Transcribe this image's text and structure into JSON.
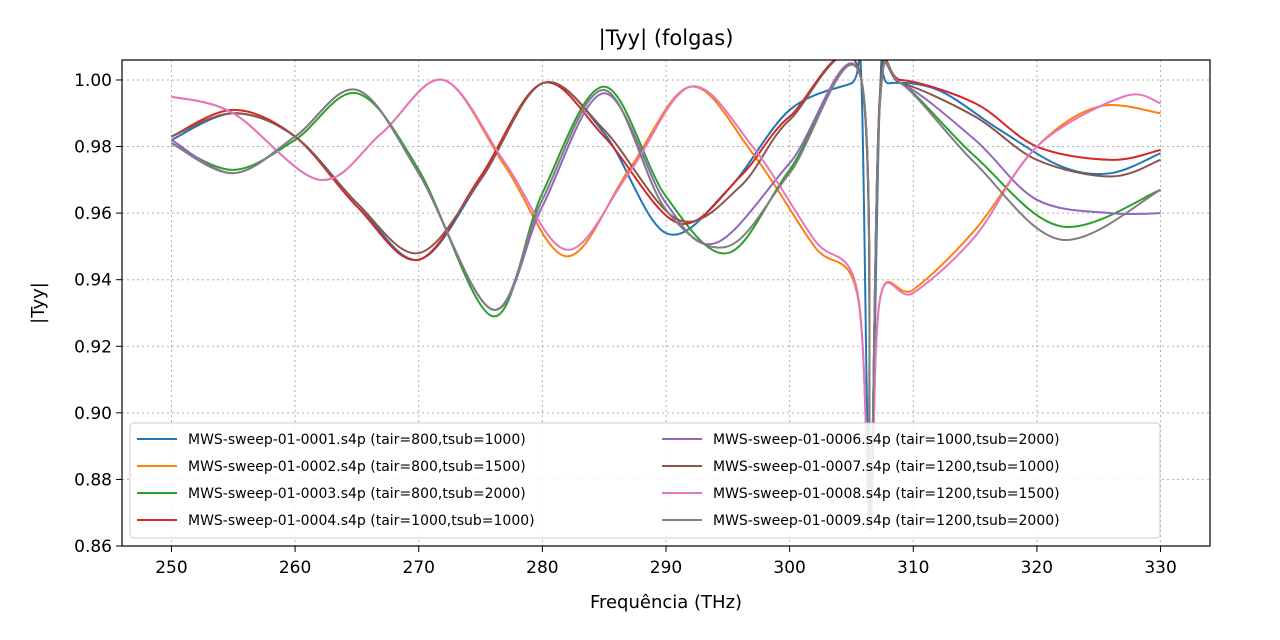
{
  "chart_data": {
    "type": "line",
    "title": "|Tyy| (folgas)",
    "xlabel": "Frequência (THz)",
    "ylabel": "|Tyy|",
    "xlim": [
      246,
      334
    ],
    "ylim": [
      0.86,
      1.006
    ],
    "xticks": [
      "250",
      "260",
      "270",
      "280",
      "290",
      "300",
      "310",
      "320",
      "330"
    ],
    "yticks": [
      "0.86",
      "0.88",
      "0.90",
      "0.92",
      "0.94",
      "0.96",
      "0.98",
      "1.00"
    ],
    "grid": true,
    "legend_position": "lower center, 2 columns",
    "series": [
      {
        "name": "MWS-sweep-01-0001.s4p (tair=800,tsub=1000)",
        "color": "#1f77b4",
        "x": [
          250,
          255,
          260,
          265,
          270,
          275,
          280,
          285,
          290,
          295,
          300,
          305,
          305.8,
          306.5,
          307.3,
          308,
          312,
          317,
          322,
          326,
          330
        ],
        "y": [
          0.982,
          0.99,
          0.983,
          0.963,
          0.946,
          0.97,
          0.999,
          0.984,
          0.954,
          0.967,
          0.991,
          0.999,
          1.0,
          0.87,
          0.995,
          0.999,
          0.997,
          0.985,
          0.974,
          0.972,
          0.978
        ]
      },
      {
        "name": "MWS-sweep-01-0002.s4p (tair=800,tsub=1500)",
        "color": "#ff7f0e",
        "x": [
          250,
          255,
          262,
          267,
          272,
          277,
          282,
          287,
          292,
          297,
          302,
          305.5,
          306.5,
          307.3,
          310,
          315,
          320,
          325,
          330
        ],
        "y": [
          0.995,
          0.99,
          0.97,
          0.984,
          1.0,
          0.974,
          0.947,
          0.973,
          0.998,
          0.978,
          0.95,
          0.935,
          0.865,
          0.934,
          0.937,
          0.955,
          0.98,
          0.992,
          0.99
        ]
      },
      {
        "name": "MWS-sweep-01-0003.s4p (tair=800,tsub=2000)",
        "color": "#2ca02c",
        "x": [
          250,
          255,
          260,
          265,
          270,
          276,
          280,
          285,
          290,
          295,
          300,
          305.8,
          306.5,
          307.3,
          309,
          315,
          322,
          330
        ],
        "y": [
          0.981,
          0.973,
          0.982,
          0.996,
          0.973,
          0.929,
          0.966,
          0.998,
          0.965,
          0.948,
          0.973,
          1.0,
          0.868,
          0.993,
          0.999,
          0.977,
          0.956,
          0.967
        ]
      },
      {
        "name": "MWS-sweep-01-0004.s4p (tair=1000,tsub=1000)",
        "color": "#d62728",
        "x": [
          250,
          255,
          260,
          265,
          270,
          275,
          280,
          285,
          291,
          296,
          300,
          305.8,
          306.5,
          307.3,
          309,
          315,
          320,
          326,
          330
        ],
        "y": [
          0.983,
          0.991,
          0.983,
          0.962,
          0.946,
          0.971,
          0.999,
          0.983,
          0.957,
          0.971,
          0.989,
          1.0,
          0.865,
          0.995,
          1.0,
          0.993,
          0.98,
          0.976,
          0.979
        ]
      },
      {
        "name": "MWS-sweep-01-0006.s4p (tair=1000,tsub=2000)",
        "color": "#9467bd",
        "x": [
          250,
          255,
          260,
          265,
          270,
          276,
          280,
          285,
          290,
          294,
          300,
          305.8,
          306.5,
          307.3,
          309,
          315,
          320,
          326,
          330
        ],
        "y": [
          0.982,
          0.972,
          0.983,
          0.997,
          0.972,
          0.931,
          0.962,
          0.996,
          0.963,
          0.951,
          0.975,
          1.0,
          0.868,
          0.993,
          0.999,
          0.982,
          0.964,
          0.96,
          0.96
        ]
      },
      {
        "name": "MWS-sweep-01-0007.s4p (tair=1200,tsub=1000)",
        "color": "#8c564b",
        "x": [
          250,
          255,
          260,
          265,
          270,
          275,
          280,
          285,
          291,
          296,
          300,
          305.8,
          306.5,
          307.3,
          309,
          315,
          320,
          326,
          330
        ],
        "y": [
          0.983,
          0.99,
          0.983,
          0.963,
          0.948,
          0.97,
          0.999,
          0.985,
          0.958,
          0.968,
          0.988,
          1.0,
          0.865,
          0.995,
          0.999,
          0.989,
          0.976,
          0.971,
          0.976
        ]
      },
      {
        "name": "MWS-sweep-01-0008.s4p (tair=1200,tsub=1500)",
        "color": "#e377c2",
        "x": [
          250,
          255,
          262,
          267,
          272,
          277,
          282,
          287,
          292,
          297,
          302,
          305.5,
          306.5,
          307.3,
          310,
          315,
          320,
          327,
          330
        ],
        "y": [
          0.995,
          0.99,
          0.97,
          0.984,
          1.0,
          0.975,
          0.949,
          0.972,
          0.998,
          0.98,
          0.952,
          0.936,
          0.865,
          0.934,
          0.936,
          0.953,
          0.98,
          0.995,
          0.993
        ]
      },
      {
        "name": "MWS-sweep-01-0009.s4p (tair=1200,tsub=2000)",
        "color": "#7f7f7f",
        "x": [
          250,
          255,
          260,
          265,
          270,
          276,
          280,
          285,
          290,
          295,
          300,
          305.8,
          306.5,
          307.3,
          309,
          315,
          322,
          330
        ],
        "y": [
          0.981,
          0.972,
          0.983,
          0.997,
          0.972,
          0.931,
          0.964,
          0.997,
          0.961,
          0.95,
          0.972,
          1.0,
          0.868,
          0.993,
          0.999,
          0.975,
          0.952,
          0.967
        ]
      }
    ]
  }
}
